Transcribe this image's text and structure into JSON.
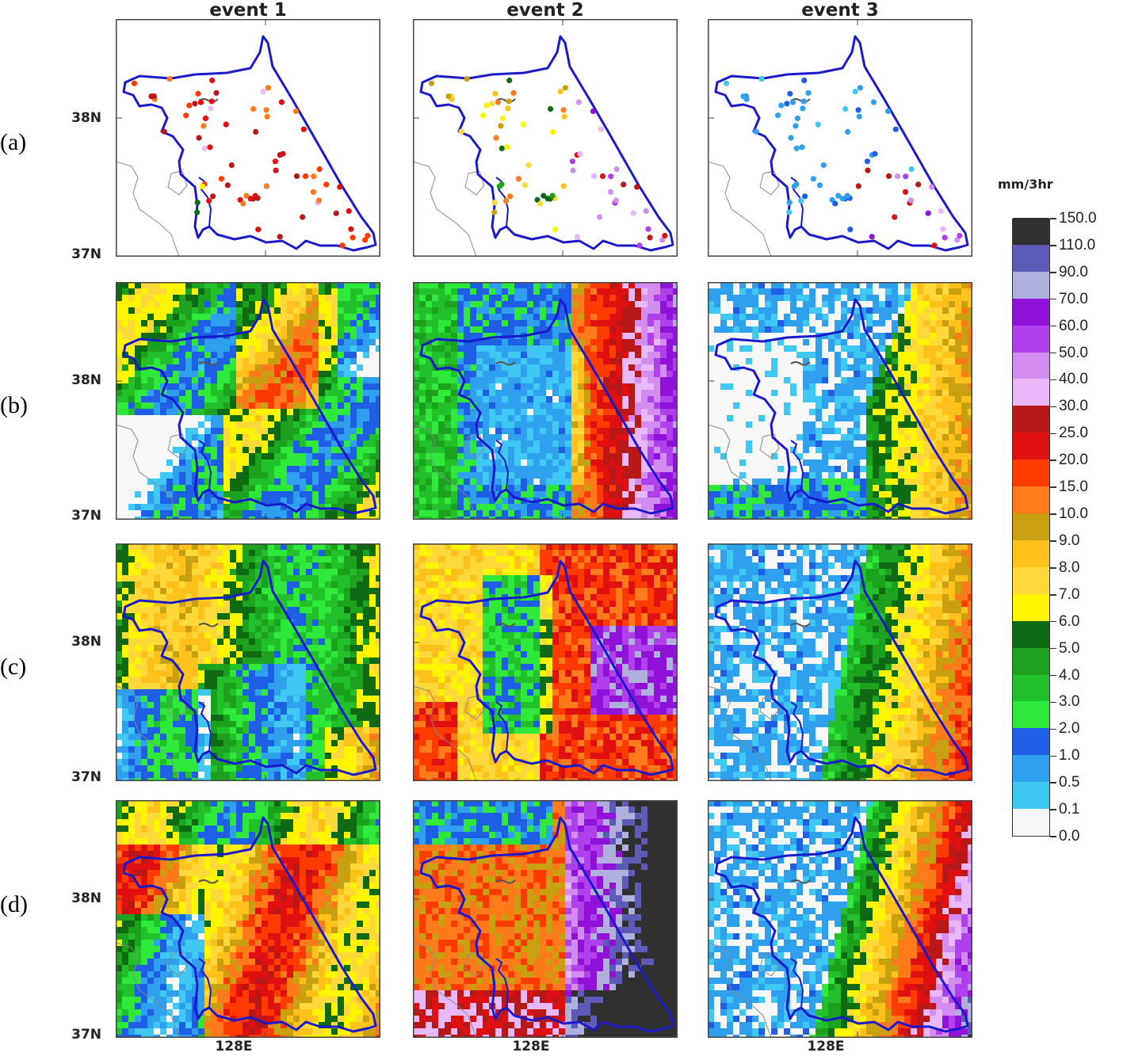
{
  "columns": [
    "event 1",
    "event 2",
    "event 3"
  ],
  "rows": [
    "(a)",
    "(b)",
    "(c)",
    "(d)"
  ],
  "lat_labels": [
    "38N",
    "37N"
  ],
  "lon_label": "128E",
  "colorbar": {
    "unit": "mm/3hr",
    "levels": [
      "0.0",
      "0.1",
      "0.5",
      "1.0",
      "2.0",
      "3.0",
      "4.0",
      "5.0",
      "6.0",
      "7.0",
      "8.0",
      "9.0",
      "10.0",
      "15.0",
      "20.0",
      "25.0",
      "30.0",
      "40.0",
      "50.0",
      "60.0",
      "70.0",
      "90.0",
      "110.0",
      "150.0"
    ],
    "colors": [
      "#f7f7f7",
      "#3fc8f4",
      "#2ea0ee",
      "#1e5fe6",
      "#2ee83a",
      "#22c02b",
      "#1ca21f",
      "#0f6a14",
      "#fff500",
      "#ffd93a",
      "#ffc11a",
      "#c8a010",
      "#ff7a1a",
      "#ff3b00",
      "#e01010",
      "#b81818",
      "#e8b8f8",
      "#d38cf0",
      "#b040ec",
      "#9012d8",
      "#b0b0dc",
      "#5c5cb8",
      "#303030"
    ],
    "nodata": "#ffffff"
  },
  "map": {
    "boundary_color": "#1a1acc",
    "coast_color": "#888888"
  }
}
